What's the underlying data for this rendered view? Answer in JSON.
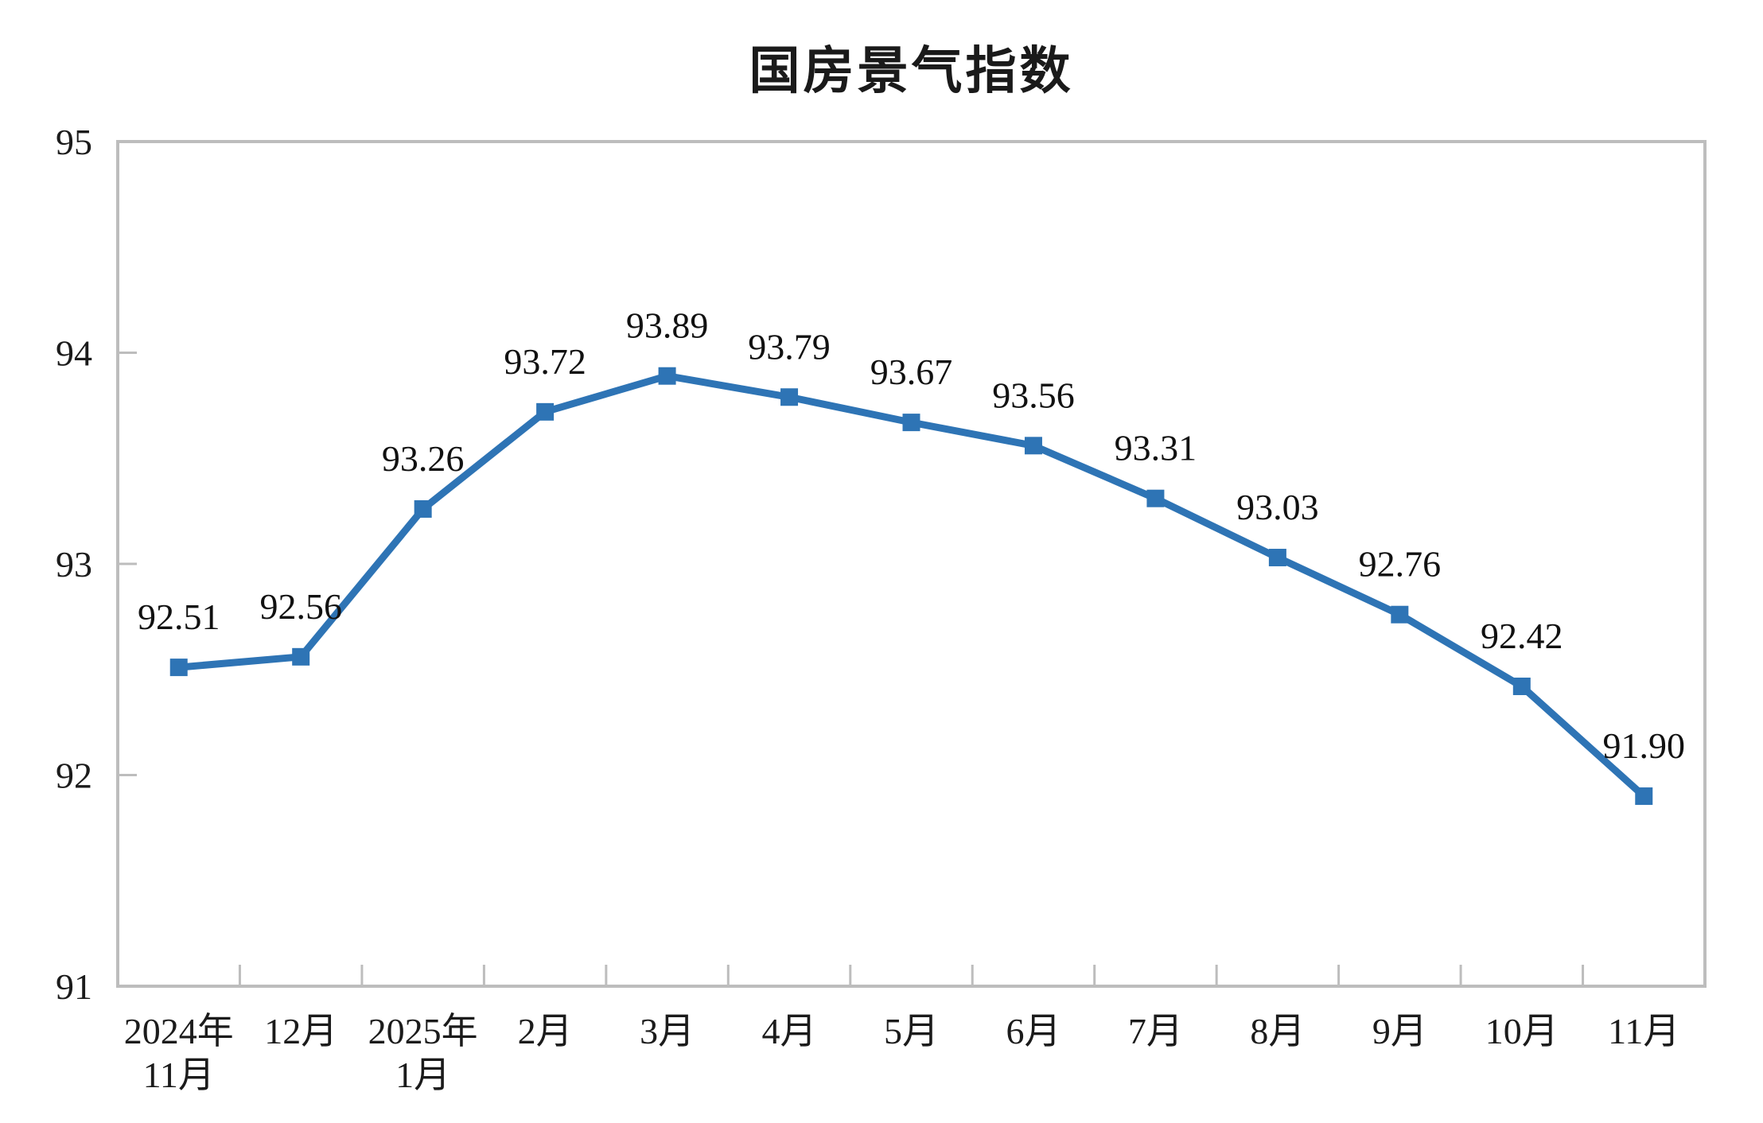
{
  "chart_data": {
    "type": "line",
    "title": "国房景气指数",
    "categories": [
      [
        "2024年",
        "11月"
      ],
      [
        "12月"
      ],
      [
        "2025年",
        "1月"
      ],
      [
        "2月"
      ],
      [
        "3月"
      ],
      [
        "4月"
      ],
      [
        "5月"
      ],
      [
        "6月"
      ],
      [
        "7月"
      ],
      [
        "8月"
      ],
      [
        "9月"
      ],
      [
        "10月"
      ],
      [
        "11月"
      ]
    ],
    "values": [
      92.51,
      92.56,
      93.26,
      93.72,
      93.89,
      93.79,
      93.67,
      93.56,
      93.31,
      93.03,
      92.76,
      92.42,
      91.9
    ],
    "point_labels": [
      "92.51",
      "92.56",
      "93.26",
      "93.72",
      "93.89",
      "93.79",
      "93.67",
      "93.56",
      "93.31",
      "93.03",
      "92.76",
      "92.42",
      "91.90"
    ],
    "ylim": [
      91,
      95
    ],
    "yticks": [
      "91",
      "92",
      "93",
      "94",
      "95"
    ],
    "xlabel": "",
    "ylabel": "",
    "legend_position": "none",
    "grid": false,
    "marker": "square",
    "line_color": "#2E74B5",
    "axis_color": "#BDBDBD",
    "text_color": "#1b1b1b"
  }
}
